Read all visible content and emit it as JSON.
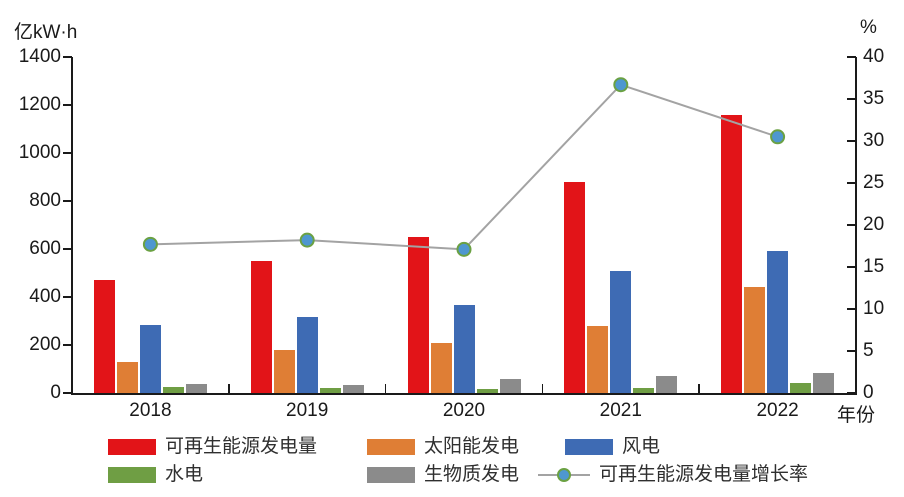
{
  "chart_data": {
    "type": "bar",
    "subtype": "grouped-bar-with-line",
    "categories": [
      "2018",
      "2019",
      "2020",
      "2021",
      "2022"
    ],
    "series": [
      {
        "key": "renewable-total",
        "name": "可再生能源发电量",
        "color": "#e21418",
        "values": [
          470,
          550,
          648,
          878,
          1160
        ]
      },
      {
        "key": "solar",
        "name": "太阳能发电",
        "color": "#df7e35",
        "values": [
          130,
          178,
          210,
          280,
          440
        ]
      },
      {
        "key": "wind",
        "name": "风电",
        "color": "#3e6bb4",
        "values": [
          283,
          318,
          367,
          510,
          590
        ]
      },
      {
        "key": "hydro",
        "name": "水电",
        "color": "#6f9e44",
        "values": [
          24,
          22,
          18,
          20,
          40
        ]
      },
      {
        "key": "biomass",
        "name": "生物质发电",
        "color": "#8b8b8b",
        "values": [
          38,
          34,
          60,
          70,
          85
        ]
      }
    ],
    "line_series": {
      "key": "growth-rate",
      "name": "可再生能源发电量增长率",
      "values": [
        17.7,
        18.2,
        17.1,
        36.7,
        30.5
      ],
      "line_color": "#a3a3a3",
      "marker_fill": "#4e97d0",
      "marker_stroke": "#6ba143"
    },
    "left_axis": {
      "title": "亿kW·h",
      "min": 0,
      "max": 1400,
      "tick_step": 200,
      "tick_labels": [
        "0",
        "200",
        "400",
        "600",
        "800",
        "1000",
        "1200",
        "1400"
      ]
    },
    "right_axis": {
      "title": "%",
      "min": 0,
      "max": 40,
      "tick_step": 5,
      "tick_labels": [
        "0",
        "5",
        "10",
        "15",
        "20",
        "25",
        "30",
        "35",
        "40"
      ]
    },
    "x_axis": {
      "title": "年份"
    },
    "legend_position": "bottom",
    "grid": false,
    "background": "#ffffff"
  }
}
